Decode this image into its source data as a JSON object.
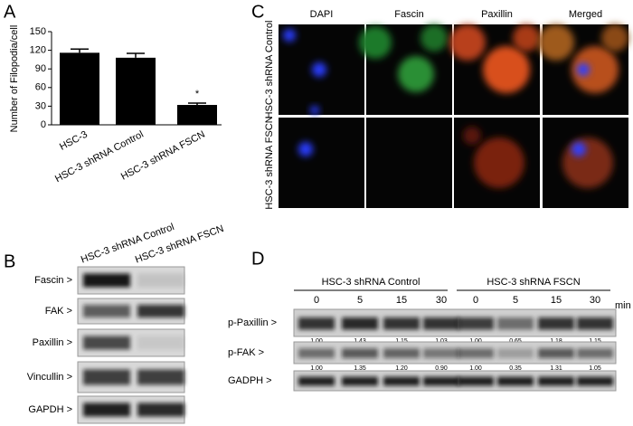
{
  "panel_labels": [
    "A",
    "B",
    "C",
    "D"
  ],
  "chart_data": {
    "type": "bar",
    "y_label": "Number of Filopodia/cell",
    "categories": [
      "HSC-3",
      "HSC-3 shRNA Control",
      "HSC-3 shRNA FSCN"
    ],
    "values": [
      116,
      108,
      32
    ],
    "errors": [
      6,
      7,
      3
    ],
    "color": "#000000",
    "ylim": [
      0,
      150
    ],
    "yticks": [
      0,
      30,
      60,
      90,
      120,
      150
    ],
    "annotation": "*"
  },
  "panel_b": {
    "columns": [
      "HSC-3 shRNA Control",
      "HSC-3 shRNA FSCN"
    ],
    "rows": [
      "Fascin >",
      "FAK >",
      "Paxillin >",
      "Vincullin >",
      "GAPDH >"
    ]
  },
  "panel_c": {
    "columns": [
      "DAPI",
      "Fascin",
      "Paxillin",
      "Merged"
    ],
    "rows": [
      "HSC-3 shRNA Control",
      "HSC-3 shRNA FSCN"
    ]
  },
  "panel_d": {
    "groups": [
      "HSC-3 shRNA Control",
      "HSC-3 shRNA FSCN"
    ],
    "times": [
      "0",
      "5",
      "15",
      "30",
      "0",
      "5",
      "15",
      "30"
    ],
    "time_unit": "min",
    "rows": [
      {
        "label": "p-Paxillin >",
        "values": [
          "1.00",
          "1.43",
          "1.15",
          "1.03",
          "1.00",
          "0.65",
          "1.18",
          "1.15"
        ]
      },
      {
        "label": "p-FAK >",
        "values": [
          "1.00",
          "1.35",
          "1.20",
          "0.90",
          "1.00",
          "0.35",
          "1.31",
          "1.05"
        ]
      },
      {
        "label": "GADPH >",
        "values": []
      }
    ]
  }
}
